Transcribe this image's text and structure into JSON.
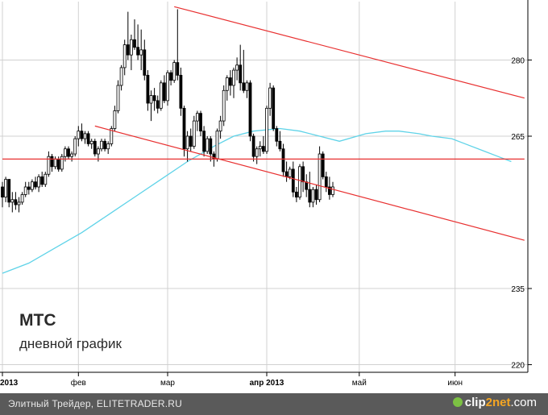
{
  "chart_data": {
    "type": "candlestick",
    "title": "МТС",
    "subtitle": "дневной график",
    "y_ticks": [
      220,
      235,
      265,
      280
    ],
    "ylim": [
      218.5,
      291.5
    ],
    "x_tick_labels": [
      "2013",
      "фев",
      "мар",
      "апр 2013",
      "май",
      "июн"
    ],
    "colors": {
      "candle": "#000000",
      "moving_average": "#5fd3e8",
      "trendline": "#e83030",
      "grid": "#d0d0d0"
    },
    "ohlc": [
      [
        255.0,
        256.0,
        251.0,
        253.0
      ],
      [
        253.0,
        257.0,
        252.0,
        256.5
      ],
      [
        256.5,
        256.5,
        251.0,
        252.0
      ],
      [
        252.0,
        254.0,
        250.0,
        252.5
      ],
      [
        252.5,
        254.0,
        250.5,
        251.5
      ],
      [
        251.5,
        253.0,
        250.0,
        252.0
      ],
      [
        252.0,
        254.0,
        251.5,
        253.5
      ],
      [
        253.5,
        256.0,
        253.0,
        255.0
      ],
      [
        255.0,
        256.0,
        253.5,
        254.5
      ],
      [
        254.5,
        256.5,
        254.0,
        256.0
      ],
      [
        256.0,
        257.0,
        254.5,
        255.0
      ],
      [
        255.0,
        257.5,
        254.0,
        257.0
      ],
      [
        257.0,
        258.0,
        255.0,
        255.5
      ],
      [
        255.5,
        258.0,
        255.0,
        257.5
      ],
      [
        257.5,
        262.0,
        257.0,
        261.0
      ],
      [
        261.0,
        261.5,
        258.0,
        259.0
      ],
      [
        259.0,
        261.0,
        258.5,
        260.5
      ],
      [
        260.5,
        261.0,
        258.0,
        258.5
      ],
      [
        258.5,
        261.5,
        258.0,
        261.0
      ],
      [
        261.0,
        263.0,
        260.0,
        262.5
      ],
      [
        262.5,
        263.0,
        260.5,
        261.0
      ],
      [
        261.0,
        262.0,
        260.0,
        261.5
      ],
      [
        261.5,
        265.0,
        261.0,
        264.5
      ],
      [
        264.5,
        267.0,
        263.0,
        266.0
      ],
      [
        266.0,
        267.5,
        264.0,
        264.5
      ],
      [
        264.5,
        266.0,
        263.5,
        265.5
      ],
      [
        265.5,
        266.0,
        263.0,
        263.5
      ],
      [
        263.5,
        264.5,
        262.5,
        264.0
      ],
      [
        264.0,
        264.5,
        261.0,
        261.5
      ],
      [
        261.5,
        263.0,
        260.0,
        262.5
      ],
      [
        262.5,
        264.5,
        262.0,
        264.0
      ],
      [
        264.0,
        264.5,
        262.0,
        262.5
      ],
      [
        262.5,
        264.0,
        261.5,
        263.5
      ],
      [
        263.5,
        267.0,
        263.0,
        266.5
      ],
      [
        266.5,
        271.0,
        266.0,
        270.0
      ],
      [
        270.0,
        276.0,
        269.5,
        275.0
      ],
      [
        275.0,
        279.0,
        274.0,
        278.5
      ],
      [
        278.5,
        284.0,
        277.0,
        283.0
      ],
      [
        283.0,
        289.5,
        280.0,
        281.0
      ],
      [
        281.0,
        285.0,
        278.0,
        284.0
      ],
      [
        284.0,
        288.0,
        282.0,
        282.5
      ],
      [
        282.5,
        287.0,
        280.0,
        281.0
      ],
      [
        281.0,
        286.0,
        278.0,
        282.0
      ],
      [
        282.0,
        284.0,
        276.0,
        277.0
      ],
      [
        277.0,
        278.0,
        270.0,
        271.5
      ],
      [
        271.5,
        274.0,
        268.0,
        273.0
      ],
      [
        273.0,
        274.5,
        270.0,
        272.0
      ],
      [
        272.0,
        273.0,
        269.5,
        270.5
      ],
      [
        270.5,
        276.0,
        270.0,
        275.5
      ],
      [
        275.5,
        277.0,
        271.5,
        272.0
      ],
      [
        272.0,
        278.0,
        271.0,
        277.5
      ],
      [
        277.5,
        278.0,
        275.0,
        276.0
      ],
      [
        276.0,
        280.0,
        275.5,
        279.5
      ],
      [
        279.5,
        290.0,
        276.0,
        277.0
      ],
      [
        277.0,
        278.5,
        269.0,
        270.5
      ],
      [
        270.5,
        271.0,
        261.0,
        262.5
      ],
      [
        262.5,
        266.0,
        260.0,
        265.0
      ],
      [
        265.0,
        266.5,
        262.0,
        263.0
      ],
      [
        263.0,
        269.0,
        262.5,
        268.0
      ],
      [
        268.0,
        270.0,
        266.0,
        269.5
      ],
      [
        269.5,
        270.0,
        265.0,
        266.0
      ],
      [
        266.0,
        267.0,
        261.0,
        262.0
      ],
      [
        262.0,
        265.0,
        261.5,
        264.5
      ],
      [
        264.5,
        265.0,
        260.0,
        261.5
      ],
      [
        261.5,
        262.0,
        259.0,
        260.5
      ],
      [
        260.5,
        266.5,
        260.0,
        266.0
      ],
      [
        266.0,
        269.0,
        264.5,
        268.0
      ],
      [
        268.0,
        275.0,
        267.0,
        274.0
      ],
      [
        274.0,
        277.0,
        272.0,
        276.5
      ],
      [
        276.5,
        278.0,
        273.0,
        275.0
      ],
      [
        275.0,
        278.5,
        272.5,
        278.0
      ],
      [
        278.0,
        280.5,
        276.0,
        279.0
      ],
      [
        279.0,
        283.0,
        274.0,
        275.5
      ],
      [
        275.5,
        282.0,
        273.5,
        274.0
      ],
      [
        274.0,
        276.0,
        272.5,
        275.5
      ],
      [
        275.5,
        276.0,
        264.0,
        265.0
      ],
      [
        265.0,
        265.5,
        260.0,
        261.0
      ],
      [
        261.0,
        263.0,
        259.5,
        262.5
      ],
      [
        262.5,
        264.0,
        261.0,
        263.0
      ],
      [
        263.0,
        265.0,
        261.5,
        262.0
      ],
      [
        262.0,
        271.0,
        261.5,
        270.5
      ],
      [
        270.5,
        275.5,
        269.0,
        274.5
      ],
      [
        274.5,
        275.0,
        266.0,
        266.5
      ],
      [
        266.5,
        267.0,
        263.0,
        264.0
      ],
      [
        264.0,
        266.0,
        262.0,
        262.5
      ],
      [
        262.5,
        263.5,
        257.0,
        258.0
      ],
      [
        258.0,
        260.0,
        256.0,
        257.0
      ],
      [
        257.0,
        259.0,
        256.5,
        258.5
      ],
      [
        258.5,
        260.0,
        253.0,
        254.0
      ],
      [
        254.0,
        255.0,
        252.0,
        253.0
      ],
      [
        253.0,
        259.5,
        252.5,
        259.0
      ],
      [
        259.0,
        260.0,
        254.0,
        256.0
      ],
      [
        256.0,
        257.5,
        253.0,
        254.5
      ],
      [
        254.5,
        258.0,
        251.0,
        252.0
      ],
      [
        252.0,
        255.0,
        251.0,
        254.5
      ],
      [
        254.5,
        255.5,
        251.5,
        252.5
      ],
      [
        252.5,
        263.0,
        252.0,
        261.5
      ],
      [
        261.5,
        262.0,
        256.5,
        257.0
      ],
      [
        257.0,
        258.0,
        254.0,
        255.0
      ],
      [
        255.0,
        257.0,
        252.5,
        253.5
      ],
      [
        253.5,
        256.0,
        253.0,
        255.0
      ]
    ],
    "moving_average": [
      [
        0,
        238.0
      ],
      [
        8,
        240.0
      ],
      [
        16,
        243.0
      ],
      [
        24,
        246.0
      ],
      [
        32,
        249.5
      ],
      [
        40,
        253.0
      ],
      [
        48,
        256.5
      ],
      [
        56,
        260.0
      ],
      [
        64,
        263.0
      ],
      [
        70,
        265.0
      ],
      [
        76,
        266.0
      ],
      [
        84,
        266.5
      ],
      [
        90,
        266.0
      ],
      [
        96,
        265.0
      ],
      [
        102,
        264.0
      ],
      [
        110,
        265.5
      ],
      [
        116,
        266.0
      ],
      [
        120,
        266.0
      ],
      [
        126,
        265.5
      ],
      [
        130,
        265.0
      ],
      [
        136,
        264.5
      ],
      [
        140,
        263.5
      ],
      [
        146,
        262.0
      ],
      [
        150,
        261.0
      ],
      [
        154,
        260.0
      ]
    ],
    "trendlines": [
      {
        "from": [
          28,
          267.0
        ],
        "to": [
          158,
          244.5
        ]
      },
      {
        "from": [
          52,
          290.5
        ],
        "to": [
          158,
          272.5
        ]
      },
      {
        "from": [
          0,
          260.5
        ],
        "to": [
          158,
          260.5
        ]
      }
    ]
  }
}
